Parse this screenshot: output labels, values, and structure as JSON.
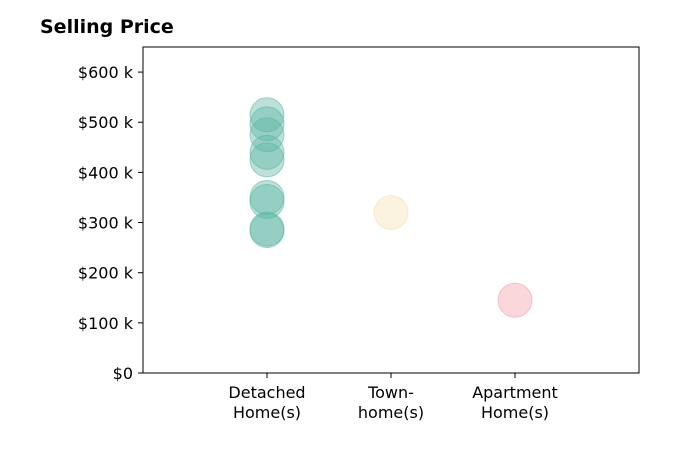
{
  "chart_data": {
    "type": "scatter",
    "title": "Selling Price",
    "xlabel": "",
    "ylabel": "",
    "categories": [
      "Detached\nHome(s)",
      "Town-\nhome(s)",
      "Apartment\nHome(s)"
    ],
    "ylim": [
      0,
      650000
    ],
    "yticks": [
      {
        "value": 0,
        "label": "$0"
      },
      {
        "value": 100000,
        "label": "$100 k"
      },
      {
        "value": 200000,
        "label": "$200 k"
      },
      {
        "value": 300000,
        "label": "$300 k"
      },
      {
        "value": 400000,
        "label": "$400 k"
      },
      {
        "value": 500000,
        "label": "$500 k"
      },
      {
        "value": 600000,
        "label": "$600 k"
      }
    ],
    "grid": false,
    "colors": [
      "#5ab4a3",
      "#f5deb0",
      "#f09aa6"
    ],
    "series": [
      {
        "category": "Detached\nHome(s)",
        "values": [
          515000,
          497000,
          475000,
          440000,
          425000,
          350000,
          342000,
          287000,
          284000
        ]
      },
      {
        "category": "Town-\nhome(s)",
        "values": [
          320000
        ]
      },
      {
        "category": "Apartment\nHome(s)",
        "values": [
          145000
        ]
      }
    ]
  }
}
